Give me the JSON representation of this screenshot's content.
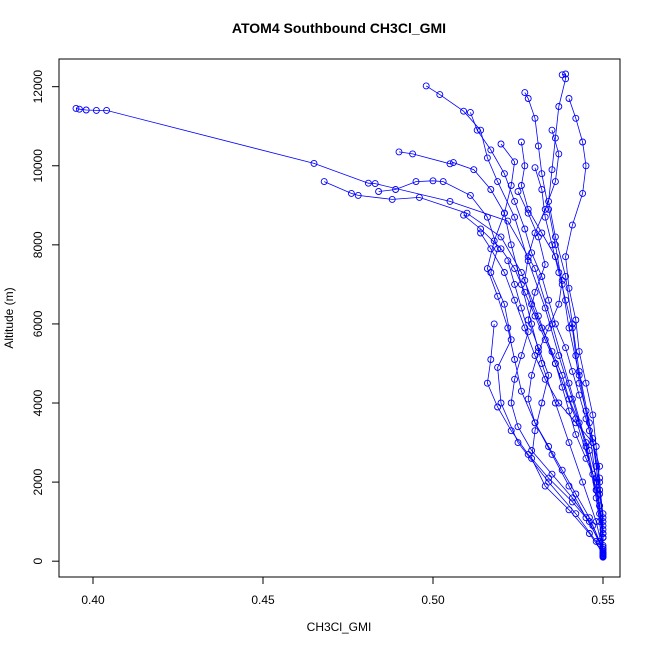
{
  "chart_data": {
    "type": "line",
    "title": "ATOM4 Southbound CH3Cl_GMI",
    "xlabel": "CH3Cl_GMI",
    "ylabel": "Altitude (m)",
    "xlim": [
      0.39,
      0.555
    ],
    "ylim": [
      -400,
      12700
    ],
    "x_ticks": [
      "0.40",
      "0.45",
      "0.50",
      "0.55"
    ],
    "x_tick_values": [
      0.4,
      0.45,
      0.5,
      0.55
    ],
    "y_ticks": [
      "0",
      "2000",
      "4000",
      "6000",
      "8000",
      "10000",
      "12000"
    ],
    "y_tick_values": [
      0,
      2000,
      4000,
      6000,
      8000,
      10000,
      12000
    ],
    "series_color": "#0000ff",
    "marker": "open-circle",
    "series": [
      {
        "values": [
          [
            0.395,
            11450
          ],
          [
            0.396,
            11430
          ],
          [
            0.398,
            11410
          ],
          [
            0.401,
            11400
          ],
          [
            0.404,
            11400
          ],
          [
            0.465,
            10060
          ],
          [
            0.481,
            9560
          ],
          [
            0.483,
            9550
          ],
          [
            0.505,
            9100
          ],
          [
            0.522,
            8600
          ],
          [
            0.53,
            7400
          ],
          [
            0.535,
            6000
          ],
          [
            0.54,
            4500
          ],
          [
            0.545,
            3000
          ],
          [
            0.548,
            1800
          ],
          [
            0.55,
            600
          ],
          [
            0.55,
            150
          ]
        ]
      },
      {
        "values": [
          [
            0.468,
            9600
          ],
          [
            0.476,
            9300
          ],
          [
            0.478,
            9250
          ],
          [
            0.488,
            9150
          ],
          [
            0.496,
            9200
          ],
          [
            0.51,
            8800
          ],
          [
            0.52,
            8200
          ],
          [
            0.526,
            7300
          ],
          [
            0.531,
            6200
          ],
          [
            0.536,
            5000
          ],
          [
            0.542,
            3600
          ],
          [
            0.547,
            2200
          ],
          [
            0.549,
            1000
          ],
          [
            0.55,
            200
          ]
        ]
      },
      {
        "values": [
          [
            0.498,
            12020
          ],
          [
            0.502,
            11800
          ],
          [
            0.509,
            11380
          ],
          [
            0.514,
            10900
          ],
          [
            0.516,
            10200
          ],
          [
            0.519,
            9600
          ],
          [
            0.524,
            8700
          ],
          [
            0.528,
            7600
          ],
          [
            0.533,
            6400
          ],
          [
            0.537,
            5200
          ],
          [
            0.541,
            4100
          ],
          [
            0.545,
            2900
          ],
          [
            0.548,
            1600
          ],
          [
            0.55,
            400
          ]
        ]
      },
      {
        "values": [
          [
            0.527,
            11850
          ],
          [
            0.528,
            11700
          ],
          [
            0.53,
            11200
          ],
          [
            0.531,
            10500
          ],
          [
            0.532,
            9800
          ],
          [
            0.534,
            8900
          ],
          [
            0.536,
            8000
          ],
          [
            0.538,
            7000
          ],
          [
            0.54,
            5900
          ],
          [
            0.543,
            4700
          ],
          [
            0.546,
            3300
          ],
          [
            0.548,
            2000
          ],
          [
            0.55,
            700
          ]
        ]
      },
      {
        "values": [
          [
            0.538,
            12300
          ],
          [
            0.539,
            12320
          ],
          [
            0.539,
            12200
          ],
          [
            0.537,
            11500
          ],
          [
            0.536,
            10700
          ],
          [
            0.535,
            9900
          ],
          [
            0.534,
            9100
          ],
          [
            0.536,
            8200
          ],
          [
            0.539,
            7200
          ],
          [
            0.541,
            6000
          ],
          [
            0.543,
            4800
          ],
          [
            0.546,
            3500
          ],
          [
            0.549,
            2100
          ],
          [
            0.55,
            900
          ],
          [
            0.55,
            180
          ]
        ]
      },
      {
        "values": [
          [
            0.49,
            10350
          ],
          [
            0.494,
            10300
          ],
          [
            0.505,
            10050
          ],
          [
            0.506,
            10080
          ],
          [
            0.512,
            9900
          ],
          [
            0.517,
            9400
          ],
          [
            0.521,
            8800
          ],
          [
            0.523,
            8000
          ],
          [
            0.526,
            7000
          ],
          [
            0.529,
            6000
          ],
          [
            0.532,
            5000
          ],
          [
            0.536,
            4000
          ],
          [
            0.54,
            3000
          ],
          [
            0.544,
            2000
          ],
          [
            0.548,
            1000
          ],
          [
            0.55,
            250
          ]
        ]
      },
      {
        "values": [
          [
            0.484,
            9350
          ],
          [
            0.489,
            9400
          ],
          [
            0.495,
            9600
          ],
          [
            0.5,
            9620
          ],
          [
            0.503,
            9600
          ],
          [
            0.511,
            9250
          ],
          [
            0.516,
            8700
          ],
          [
            0.519,
            7900
          ],
          [
            0.517,
            7300
          ],
          [
            0.521,
            6500
          ],
          [
            0.523,
            5600
          ],
          [
            0.519,
            4900
          ],
          [
            0.52,
            4000
          ],
          [
            0.525,
            3000
          ],
          [
            0.534,
            2000
          ],
          [
            0.542,
            1200
          ],
          [
            0.548,
            500
          ],
          [
            0.55,
            120
          ]
        ]
      },
      {
        "values": [
          [
            0.52,
            10550
          ],
          [
            0.524,
            10100
          ],
          [
            0.523,
            9500
          ],
          [
            0.521,
            8800
          ],
          [
            0.518,
            8100
          ],
          [
            0.516,
            7400
          ],
          [
            0.519,
            6700
          ],
          [
            0.522,
            5900
          ],
          [
            0.524,
            5100
          ],
          [
            0.526,
            4300
          ],
          [
            0.53,
            3500
          ],
          [
            0.535,
            2700
          ],
          [
            0.54,
            1900
          ],
          [
            0.545,
            1100
          ],
          [
            0.549,
            500
          ],
          [
            0.55,
            150
          ]
        ]
      },
      {
        "values": [
          [
            0.54,
            11700
          ],
          [
            0.542,
            11200
          ],
          [
            0.544,
            10600
          ],
          [
            0.545,
            10000
          ],
          [
            0.544,
            9300
          ],
          [
            0.541,
            8500
          ],
          [
            0.539,
            7700
          ],
          [
            0.54,
            6900
          ],
          [
            0.542,
            6100
          ],
          [
            0.543,
            5300
          ],
          [
            0.545,
            4500
          ],
          [
            0.547,
            3700
          ],
          [
            0.548,
            2900
          ],
          [
            0.549,
            2000
          ],
          [
            0.55,
            1100
          ],
          [
            0.55,
            300
          ]
        ]
      },
      {
        "values": [
          [
            0.525,
            9350
          ],
          [
            0.528,
            8800
          ],
          [
            0.531,
            8200
          ],
          [
            0.533,
            7500
          ],
          [
            0.53,
            6800
          ],
          [
            0.528,
            6100
          ],
          [
            0.531,
            5400
          ],
          [
            0.534,
            4700
          ],
          [
            0.532,
            4000
          ],
          [
            0.53,
            3300
          ],
          [
            0.529,
            2600
          ],
          [
            0.533,
            1900
          ],
          [
            0.54,
            1300
          ],
          [
            0.546,
            700
          ],
          [
            0.55,
            200
          ]
        ]
      },
      {
        "values": [
          [
            0.514,
            8300
          ],
          [
            0.517,
            7900
          ],
          [
            0.521,
            7300
          ],
          [
            0.524,
            6600
          ],
          [
            0.527,
            5900
          ],
          [
            0.53,
            5200
          ],
          [
            0.533,
            4600
          ],
          [
            0.537,
            4000
          ],
          [
            0.542,
            3500
          ],
          [
            0.547,
            3000
          ],
          [
            0.549,
            2400
          ],
          [
            0.548,
            1800
          ],
          [
            0.549,
            1200
          ],
          [
            0.55,
            600
          ],
          [
            0.55,
            100
          ]
        ]
      },
      {
        "values": [
          [
            0.535,
            10900
          ],
          [
            0.537,
            10300
          ],
          [
            0.536,
            9600
          ],
          [
            0.533,
            8900
          ],
          [
            0.53,
            8300
          ],
          [
            0.528,
            7700
          ],
          [
            0.527,
            7100
          ],
          [
            0.529,
            6500
          ],
          [
            0.532,
            5900
          ],
          [
            0.535,
            5300
          ],
          [
            0.538,
            4700
          ],
          [
            0.54,
            4100
          ],
          [
            0.543,
            3500
          ],
          [
            0.546,
            2800
          ],
          [
            0.548,
            2100
          ],
          [
            0.549,
            1400
          ],
          [
            0.55,
            700
          ],
          [
            0.55,
            200
          ]
        ]
      },
      {
        "values": [
          [
            0.526,
            10600
          ],
          [
            0.527,
            10000
          ],
          [
            0.526,
            9500
          ],
          [
            0.528,
            8900
          ],
          [
            0.532,
            8300
          ],
          [
            0.536,
            7700
          ],
          [
            0.538,
            7100
          ],
          [
            0.537,
            6500
          ],
          [
            0.534,
            5900
          ],
          [
            0.531,
            5300
          ],
          [
            0.529,
            4700
          ],
          [
            0.528,
            4100
          ],
          [
            0.53,
            3500
          ],
          [
            0.534,
            2900
          ],
          [
            0.538,
            2300
          ],
          [
            0.542,
            1700
          ],
          [
            0.546,
            1100
          ],
          [
            0.549,
            500
          ],
          [
            0.55,
            130
          ]
        ]
      },
      {
        "values": [
          [
            0.511,
            11350
          ],
          [
            0.513,
            10900
          ],
          [
            0.517,
            10400
          ],
          [
            0.521,
            9800
          ],
          [
            0.524,
            9100
          ],
          [
            0.527,
            8400
          ],
          [
            0.529,
            7800
          ],
          [
            0.532,
            7200
          ],
          [
            0.534,
            6600
          ],
          [
            0.536,
            6000
          ],
          [
            0.539,
            5400
          ],
          [
            0.541,
            4800
          ],
          [
            0.543,
            4200
          ],
          [
            0.545,
            3600
          ],
          [
            0.547,
            3000
          ],
          [
            0.548,
            2400
          ],
          [
            0.549,
            1800
          ],
          [
            0.55,
            1200
          ],
          [
            0.55,
            600
          ],
          [
            0.55,
            160
          ]
        ]
      },
      {
        "values": [
          [
            0.518,
            6000
          ],
          [
            0.517,
            5100
          ],
          [
            0.516,
            4500
          ],
          [
            0.519,
            3900
          ],
          [
            0.523,
            3300
          ],
          [
            0.528,
            2700
          ],
          [
            0.534,
            2100
          ],
          [
            0.541,
            1500
          ],
          [
            0.547,
            900
          ],
          [
            0.55,
            300
          ]
        ]
      },
      {
        "values": [
          [
            0.509,
            8750
          ],
          [
            0.514,
            8400
          ],
          [
            0.52,
            7900
          ],
          [
            0.524,
            7400
          ],
          [
            0.527,
            6800
          ],
          [
            0.53,
            6200
          ],
          [
            0.533,
            5600
          ],
          [
            0.536,
            5000
          ],
          [
            0.538,
            4400
          ],
          [
            0.54,
            3800
          ],
          [
            0.542,
            3200
          ],
          [
            0.545,
            2600
          ],
          [
            0.548,
            2000
          ],
          [
            0.549,
            1400
          ],
          [
            0.55,
            800
          ],
          [
            0.55,
            220
          ]
        ]
      },
      {
        "values": [
          [
            0.53,
            9950
          ],
          [
            0.532,
            9400
          ],
          [
            0.533,
            8700
          ],
          [
            0.535,
            8000
          ],
          [
            0.537,
            7300
          ],
          [
            0.539,
            6600
          ],
          [
            0.541,
            5900
          ],
          [
            0.542,
            5200
          ],
          [
            0.543,
            4500
          ],
          [
            0.545,
            3800
          ],
          [
            0.547,
            3100
          ],
          [
            0.548,
            2400
          ],
          [
            0.549,
            1700
          ],
          [
            0.55,
            1000
          ],
          [
            0.55,
            350
          ]
        ]
      },
      {
        "values": [
          [
            0.522,
            7600
          ],
          [
            0.524,
            7000
          ],
          [
            0.526,
            6400
          ],
          [
            0.528,
            5800
          ],
          [
            0.526,
            5200
          ],
          [
            0.524,
            4600
          ],
          [
            0.523,
            4000
          ],
          [
            0.525,
            3400
          ],
          [
            0.529,
            2800
          ],
          [
            0.535,
            2200
          ],
          [
            0.541,
            1600
          ],
          [
            0.546,
            1000
          ],
          [
            0.549,
            450
          ],
          [
            0.55,
            110
          ]
        ]
      }
    ]
  }
}
